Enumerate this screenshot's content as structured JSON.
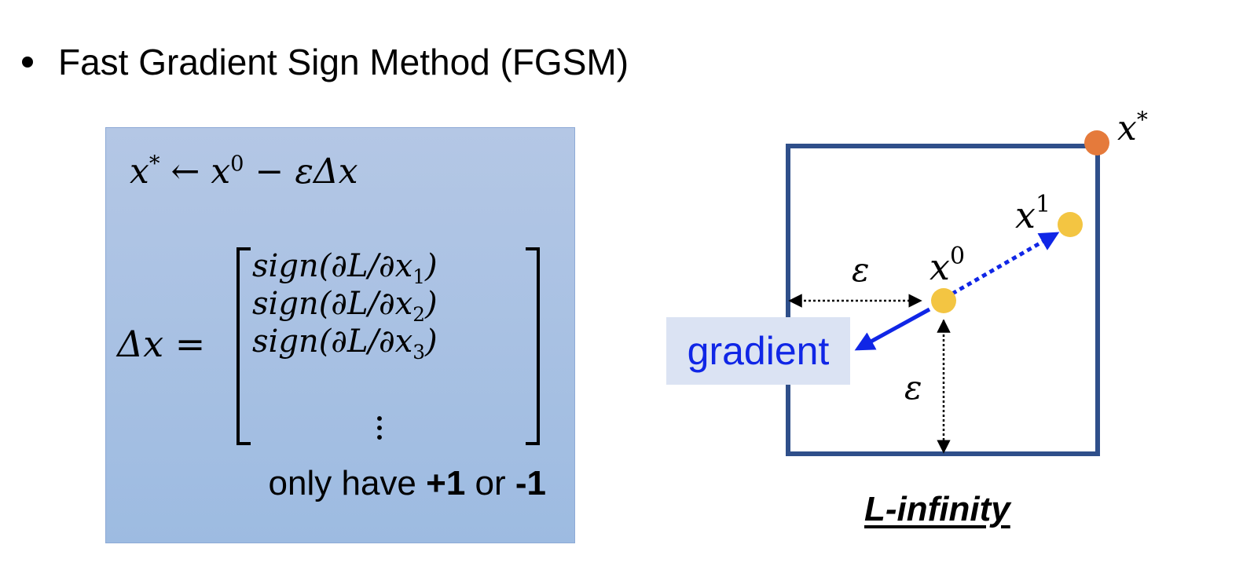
{
  "slide": {
    "bullet_title": "Fast Gradient Sign Method (FGSM)"
  },
  "formula": {
    "update": {
      "lhs": "x",
      "lhs_sup": "*",
      "arrow": "←",
      "x": "x",
      "x_sup": "0",
      "minus_rest": "− εΔx"
    },
    "delta_label": "Δx =",
    "vector_rows": [
      {
        "pre": "sign(∂L/∂x",
        "sub": "1",
        "post": ")"
      },
      {
        "pre": "sign(∂L/∂x",
        "sub": "2",
        "post": ")"
      },
      {
        "pre": "sign(∂L/∂x",
        "sub": "3",
        "post": ")"
      }
    ],
    "note": {
      "prefix": "only have ",
      "plus": "+1",
      "mid": " or ",
      "minus": "-1"
    }
  },
  "diagram": {
    "points": {
      "x_star": {
        "base": "x",
        "sup": "*"
      },
      "x0": {
        "base": "x",
        "sup": "0"
      },
      "x1": {
        "base": "x",
        "sup": "1"
      }
    },
    "epsilon_horizontal": "ε",
    "epsilon_vertical": "ε",
    "gradient_label": "gradient",
    "caption": "L-infinity"
  },
  "colors": {
    "box_border": "#2f4f8a",
    "point_yellow": "#f3c542",
    "point_orange": "#e57a3b",
    "gradient_arrow": "#1026e6"
  }
}
